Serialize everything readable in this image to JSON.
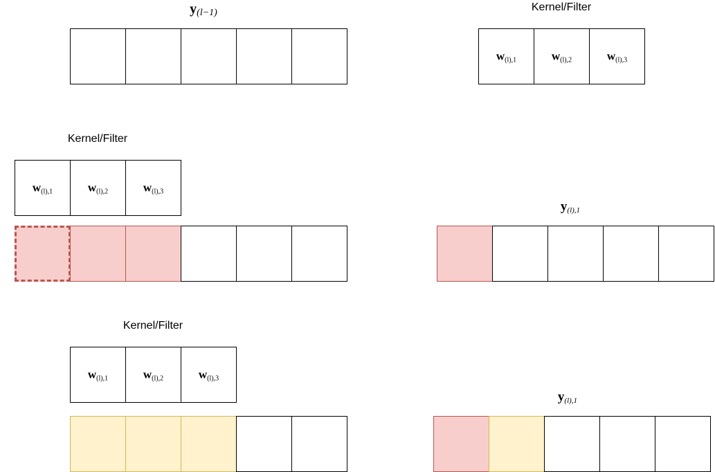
{
  "labels": {
    "input_title_bold": "y",
    "input_title_sub": "(l−1)",
    "kernel_label_top": "Kernel/Filter",
    "kernel_label_mid": "Kernel/Filter",
    "kernel_label_bottom": "Kernel/Filter",
    "output_title_mid_bold": "y",
    "output_title_mid_sub": "(l),1",
    "output_title_bottom_bold": "y",
    "output_title_bottom_sub": "(l),1"
  },
  "kernel": [
    {
      "bold": "w",
      "sub": "(l),1"
    },
    {
      "bold": "w",
      "sub": "(l),2"
    },
    {
      "bold": "w",
      "sub": "(l),3"
    }
  ],
  "colors": {
    "red_fill": "#f8cecc",
    "red_stroke": "#b85450",
    "yellow_fill": "#fff2cc",
    "yellow_stroke": "#d6b656"
  }
}
